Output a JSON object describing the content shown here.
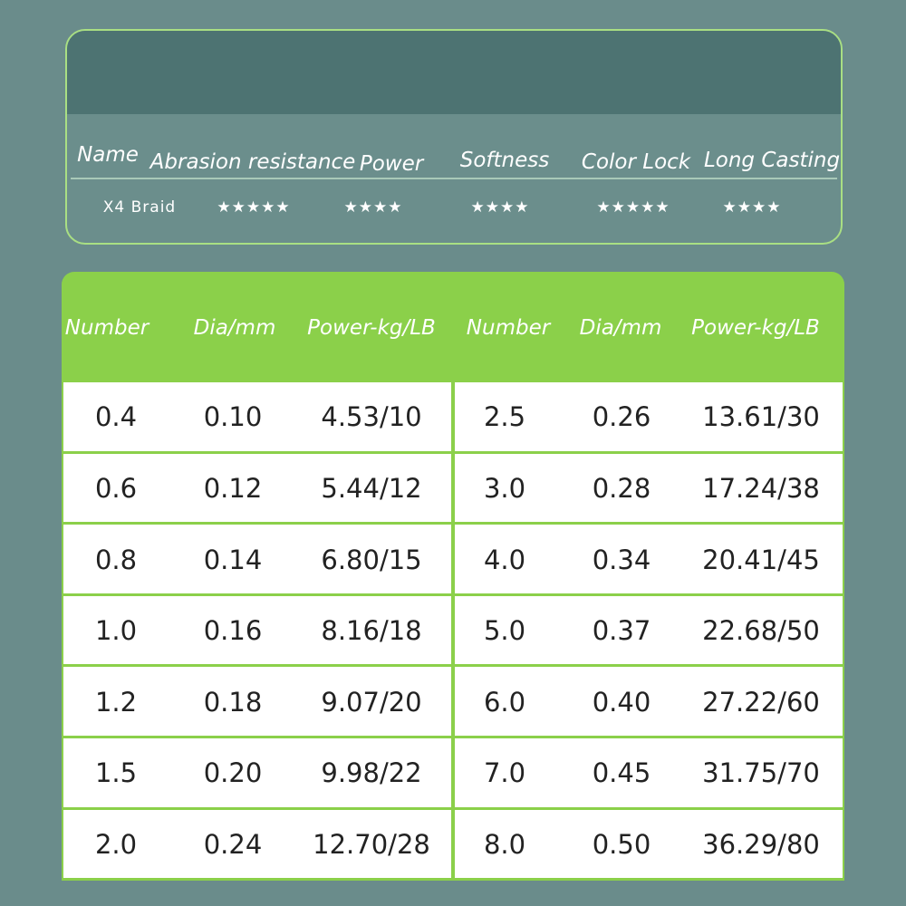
{
  "ratings": {
    "headers": [
      "Name",
      "Abrasion resistance",
      "Power",
      "Softness",
      "Color Lock",
      "Long Casting"
    ],
    "rows": [
      [
        "X4 Braid",
        "★★★★★",
        "★★★★",
        "★★★★",
        "★★★★★",
        "★★★★"
      ]
    ]
  },
  "table": {
    "headers": [
      "Number",
      "Dia/mm",
      "Power-kg/LB",
      "Number",
      "Dia/mm",
      "Power-kg/LB"
    ],
    "rows": [
      [
        "0.4",
        "0.10",
        "4.53/10",
        "2.5",
        "0.26",
        "13.61/30"
      ],
      [
        "0.6",
        "0.12",
        "5.44/12",
        "3.0",
        "0.28",
        "17.24/38"
      ],
      [
        "0.8",
        "0.14",
        "6.80/15",
        "4.0",
        "0.34",
        "20.41/45"
      ],
      [
        "1.0",
        "0.16",
        "8.16/18",
        "5.0",
        "0.37",
        "22.68/50"
      ],
      [
        "1.2",
        "0.18",
        "9.07/20",
        "6.0",
        "0.40",
        "27.22/60"
      ],
      [
        "1.5",
        "0.20",
        "9.98/22",
        "7.0",
        "0.45",
        "31.75/70"
      ],
      [
        "2.0",
        "0.24",
        "12.70/28",
        "8.0",
        "0.50",
        "36.29/80"
      ]
    ]
  }
}
